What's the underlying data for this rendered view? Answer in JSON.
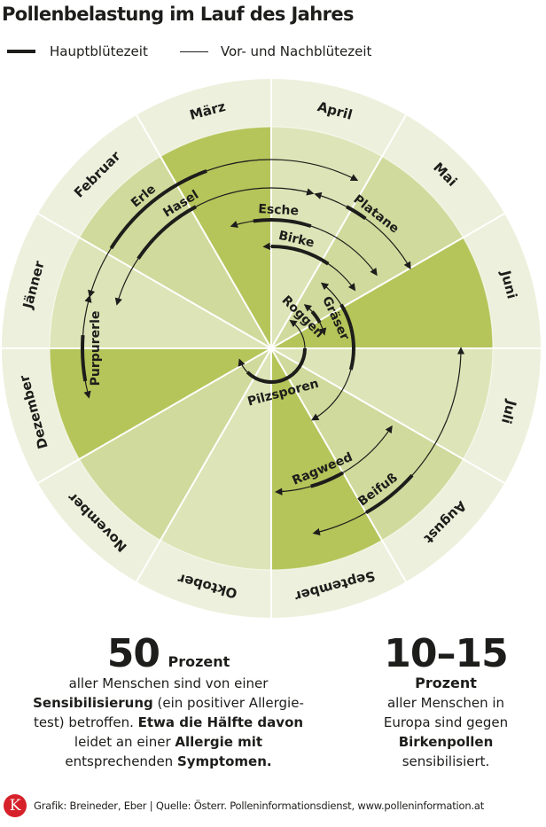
{
  "title": "Pollenbelastung im Lauf des Jahres",
  "legend": {
    "main": "Hauptblütezeit",
    "secondary": "Vor- und Nachblütezeit"
  },
  "colors": {
    "ring_outer": "#edf0dc",
    "fill_dark": "#b5c55a",
    "fill_medium": "#d0da9c",
    "fill_light": "#dde4b7",
    "line": "#1d1d1b",
    "logo_red": "#d6202a"
  },
  "chart_data": {
    "type": "radial-timeline",
    "title": "Pollenbelastung im Lauf des Jahres",
    "months": [
      "Jänner",
      "Februar",
      "März",
      "April",
      "Mai",
      "Juni",
      "Juli",
      "August",
      "September",
      "Oktober",
      "November",
      "Dezember"
    ],
    "legend": [
      "Hauptblütezeit",
      "Vor- und Nachblütezeit"
    ],
    "series": [
      {
        "name": "Erle",
        "season_months": [
          "Jänner",
          "April"
        ],
        "main_months": [
          "Februar",
          "März"
        ]
      },
      {
        "name": "Hasel",
        "season_months": [
          "Jänner",
          "April"
        ],
        "main_months": [
          "Februar",
          "März"
        ]
      },
      {
        "name": "Purpurerle",
        "season_months": [
          "Dezember",
          "Jänner"
        ],
        "main_months": [
          "Dezember",
          "Jänner"
        ]
      },
      {
        "name": "Esche",
        "season_months": [
          "März",
          "Mai"
        ],
        "main_months": [
          "März",
          "April"
        ]
      },
      {
        "name": "Birke",
        "season_months": [
          "April",
          "Mai"
        ],
        "main_months": [
          "April"
        ]
      },
      {
        "name": "Platane",
        "season_months": [
          "April",
          "Mai"
        ],
        "main_months": [
          "April"
        ]
      },
      {
        "name": "Gräser",
        "season_months": [
          "Mai",
          "August"
        ],
        "main_months": [
          "Mai",
          "Juli"
        ]
      },
      {
        "name": "Roggen",
        "season_months": [
          "Mai",
          "Juni"
        ],
        "main_months": [
          "Mai",
          "Juni"
        ]
      },
      {
        "name": "Pilzsporen",
        "season_months": [
          "Mai",
          "Dezember"
        ],
        "main_months": [
          "Juli",
          "November"
        ]
      },
      {
        "name": "Ragweed",
        "season_months": [
          "Juli",
          "September"
        ],
        "main_months": [
          "August",
          "September"
        ]
      },
      {
        "name": "Beifuß",
        "season_months": [
          "Juli",
          "September"
        ],
        "main_months": [
          "August"
        ]
      }
    ]
  },
  "stats": [
    {
      "number": "50",
      "unit": "Prozent",
      "text_parts": [
        {
          "t": "aller Menschen sind von einer ",
          "b": false
        },
        {
          "t": "Sensibilisierung",
          "b": true
        },
        {
          "t": " (ein positiver Allergie-test) betroffen. ",
          "b": false
        },
        {
          "t": "Etwa die Hälfte davon",
          "b": true
        },
        {
          "t": " leidet an einer ",
          "b": false
        },
        {
          "t": "Allergie mit",
          "b": true
        },
        {
          "t": " entsprechenden ",
          "b": false
        },
        {
          "t": "Symptomen.",
          "b": true
        }
      ],
      "lines": {
        "l1": "aller Menschen sind von einer",
        "l2b": "Sensibilisierung",
        "l2": " (ein positiver Allergie-",
        "l3": "test) betroffen. ",
        "l3b": "Etwa die Hälfte davon",
        "l4": "leidet an einer ",
        "l4b": "Allergie mit",
        "l5": "entsprechenden ",
        "l5b": "Symptomen."
      }
    },
    {
      "number": "10–15",
      "unit": "Prozent",
      "lines": {
        "l1": "aller Menschen in",
        "l2": "Europa sind gegen",
        "l3b": "Birkenpollen",
        "l4": "sensibilisiert."
      }
    }
  ],
  "footer": {
    "logo_letter": "K",
    "credit": "Grafik: Breineder, Eber | Quelle: Österr. Polleninformationsdienst, www.polleninformation.at"
  }
}
